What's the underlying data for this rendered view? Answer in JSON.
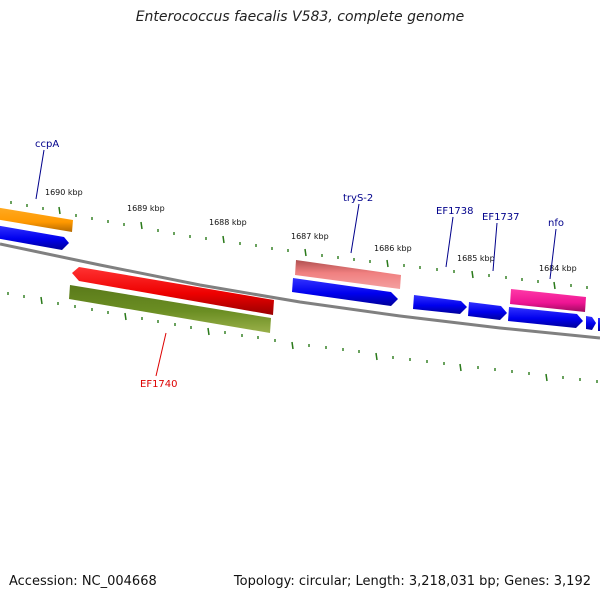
{
  "title": "Enterococcus faecalis V583, complete genome",
  "footer": {
    "accession": "Accession: NC_004668",
    "summary": "Topology: circular; Length: 3,218,031 bp; Genes: 3,192"
  },
  "scale_labels": [
    "1690 kbp",
    "1689 kbp",
    "1688 kbp",
    "1687 kbp",
    "1686 kbp",
    "1685 kbp",
    "1684 kbp"
  ],
  "genes": [
    {
      "name": "ccpA",
      "color": "#00008b"
    },
    {
      "name": "EF1740",
      "color": "#dd0000"
    },
    {
      "name": "tryS-2",
      "color": "#00008b"
    },
    {
      "name": "EF1738",
      "color": "#00008b"
    },
    {
      "name": "EF1737",
      "color": "#00008b"
    },
    {
      "name": "nfo",
      "color": "#00008b"
    }
  ],
  "colors": {
    "backbone": "#808080",
    "tick": "#2a7a1a",
    "forward_gene": "#0000ee",
    "orange_gene": "#ff9900",
    "red_gene": "#ee0000",
    "olive_gene": "#6b8e23",
    "pink_gene": "#f08080",
    "magenta_gene": "#ee1493"
  }
}
